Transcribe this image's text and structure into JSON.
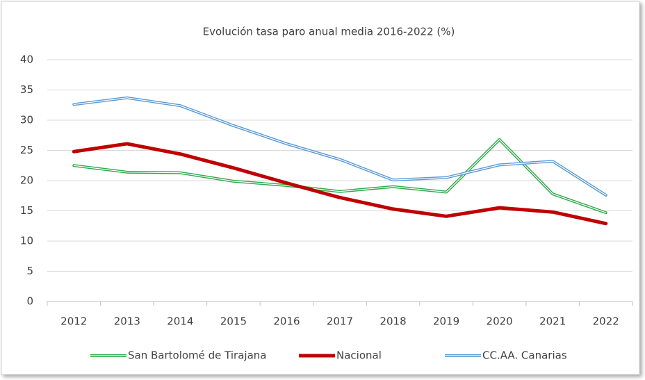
{
  "chart_data": {
    "type": "line",
    "title": "Evolución tasa paro anual media 2016-2022 (%)",
    "categories": [
      "2012",
      "2013",
      "2014",
      "2015",
      "2016",
      "2017",
      "2018",
      "2019",
      "2020",
      "2021",
      "2022"
    ],
    "series": [
      {
        "name": "San Bartolomé de Tirajana",
        "color": "#2eaa4a",
        "style": "double",
        "values": [
          22.5,
          21.4,
          21.3,
          19.9,
          19.2,
          18.2,
          19.0,
          18.1,
          26.8,
          17.8,
          14.7
        ]
      },
      {
        "name": "Nacional",
        "color": "#c00000",
        "style": "thick",
        "values": [
          24.8,
          26.1,
          24.4,
          22.1,
          19.6,
          17.2,
          15.3,
          14.1,
          15.5,
          14.8,
          12.9
        ]
      },
      {
        "name": "CC.AA. Canarias",
        "color": "#5b9bd5",
        "style": "double",
        "values": [
          32.6,
          33.7,
          32.4,
          29.1,
          26.1,
          23.5,
          20.1,
          20.5,
          22.6,
          23.2,
          17.6
        ]
      }
    ],
    "ylim": [
      0,
      40
    ],
    "yticks": [
      0,
      5,
      10,
      15,
      20,
      25,
      30,
      35,
      40
    ],
    "grid": true,
    "legend": "bottom"
  }
}
